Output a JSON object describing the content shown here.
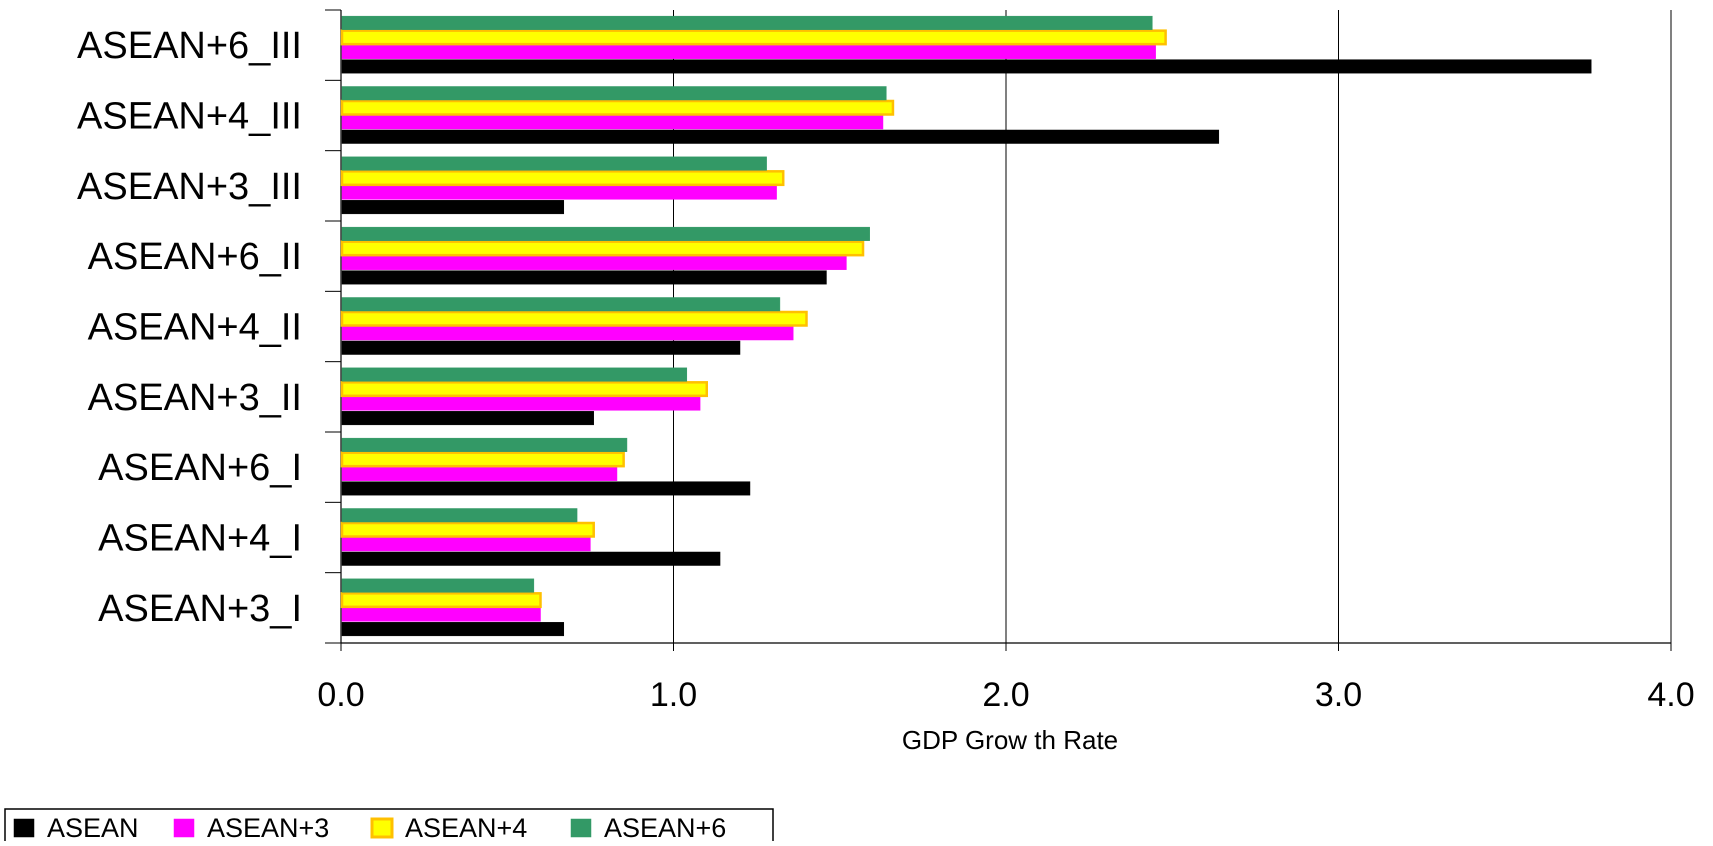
{
  "chart_data": {
    "type": "bar",
    "orientation": "horizontal",
    "title": "",
    "xlabel": "GDP Grow th Rate",
    "ylabel": "",
    "xlim": [
      0,
      4
    ],
    "x_ticks": [
      "0.0",
      "1.0",
      "2.0",
      "3.0",
      "4.0"
    ],
    "grid": "vertical major gridlines",
    "legend_position": "bottom-left",
    "categories": [
      "ASEAN+3_I",
      "ASEAN+4_I",
      "ASEAN+6_I",
      "ASEAN+3_II",
      "ASEAN+4_II",
      "ASEAN+6_II",
      "ASEAN+3_III",
      "ASEAN+4_III",
      "ASEAN+6_III"
    ],
    "series": [
      {
        "name": "ASEAN",
        "color": "#000000",
        "border": "#000000",
        "values": [
          0.67,
          1.14,
          1.23,
          0.76,
          1.2,
          1.46,
          0.67,
          2.64,
          3.76
        ]
      },
      {
        "name": "ASEAN+3",
        "color": "#FF00FF",
        "border": "#FF00FF",
        "values": [
          0.6,
          0.75,
          0.83,
          1.08,
          1.36,
          1.52,
          1.31,
          1.63,
          2.45
        ]
      },
      {
        "name": "ASEAN+4",
        "color": "#FFFF00",
        "border": "#FFC000",
        "values": [
          0.6,
          0.76,
          0.85,
          1.1,
          1.4,
          1.57,
          1.33,
          1.66,
          2.48
        ]
      },
      {
        "name": "ASEAN+6",
        "color": "#339966",
        "border": "#339966",
        "values": [
          0.58,
          0.71,
          0.86,
          1.04,
          1.32,
          1.59,
          1.28,
          1.64,
          2.44
        ]
      }
    ]
  }
}
